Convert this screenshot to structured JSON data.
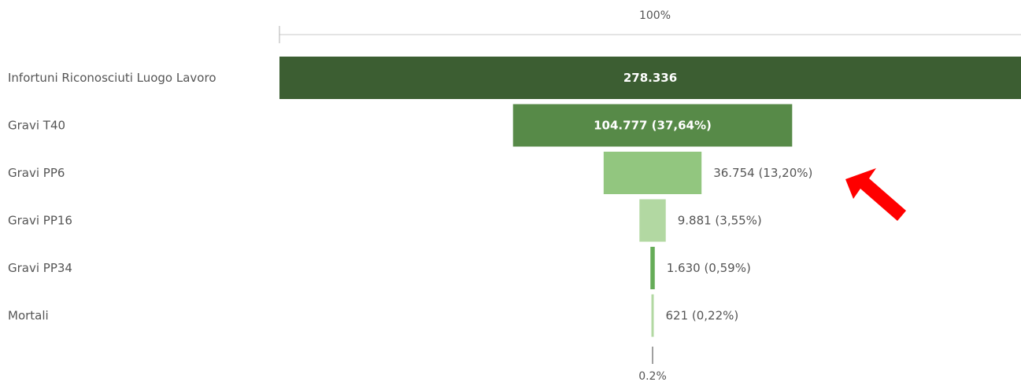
{
  "chart_data": {
    "type": "funnel",
    "axis_top_label": "100%",
    "axis_bottom_label": "0.2%",
    "categories": [
      "Infortuni Riconosciuti Luogo Lavoro",
      "Gravi T40",
      "Gravi PP6",
      "Gravi PP16",
      "Gravi PP34",
      "Mortali"
    ],
    "values": [
      278336,
      104777,
      36754,
      9881,
      1630,
      621
    ],
    "value_labels": [
      "278.336",
      "104.777 (37,64%)",
      "36.754 (13,20%)",
      "9.881 (3,55%)",
      "1.630 (0,59%)",
      "621 (0,22%)"
    ],
    "colors": [
      "#3c5e32",
      "#578a48",
      "#92c67f",
      "#b2d8a2",
      "#66ac58",
      "#b2d8a2"
    ],
    "annotation_arrow_color": "#ff0000"
  }
}
